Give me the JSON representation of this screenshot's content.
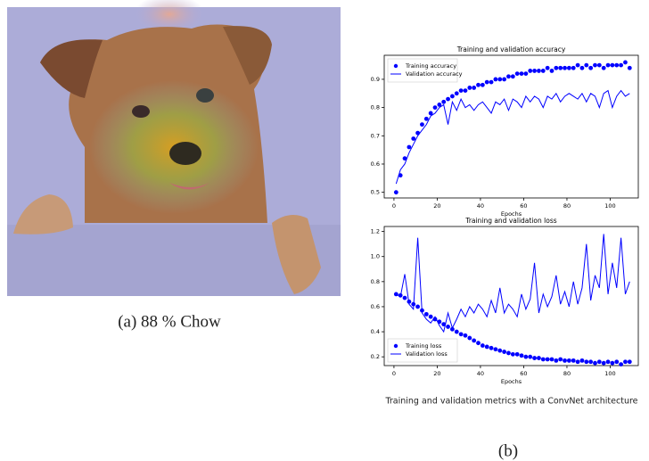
{
  "image_caption": "(a) 88 % Chow",
  "figure_caption": "Training and validation metrics with a ConvNet architecture",
  "panel_label": "(b)",
  "chart_data": [
    {
      "type": "line",
      "title": "Training and validation accuracy",
      "xlabel": "Epochs",
      "x": [
        1,
        3,
        5,
        7,
        9,
        11,
        13,
        15,
        17,
        19,
        21,
        23,
        25,
        27,
        29,
        31,
        33,
        35,
        37,
        39,
        41,
        43,
        45,
        47,
        49,
        51,
        53,
        55,
        57,
        59,
        61,
        63,
        65,
        67,
        69,
        71,
        73,
        75,
        77,
        79,
        81,
        83,
        85,
        87,
        89,
        91,
        93,
        95,
        97,
        99,
        101,
        103,
        105,
        107,
        109
      ],
      "series": [
        {
          "name": "Training accuracy",
          "color": "#0000ff",
          "style": "dots",
          "values": [
            0.5,
            0.56,
            0.62,
            0.66,
            0.69,
            0.71,
            0.74,
            0.76,
            0.78,
            0.8,
            0.81,
            0.82,
            0.83,
            0.84,
            0.85,
            0.86,
            0.86,
            0.87,
            0.87,
            0.88,
            0.88,
            0.89,
            0.89,
            0.9,
            0.9,
            0.9,
            0.91,
            0.91,
            0.92,
            0.92,
            0.92,
            0.93,
            0.93,
            0.93,
            0.93,
            0.94,
            0.93,
            0.94,
            0.94,
            0.94,
            0.94,
            0.94,
            0.95,
            0.94,
            0.95,
            0.94,
            0.95,
            0.95,
            0.94,
            0.95,
            0.95,
            0.95,
            0.95,
            0.96,
            0.94
          ]
        },
        {
          "name": "Validation accuracy",
          "color": "#0000ff",
          "style": "line",
          "values": [
            0.53,
            0.58,
            0.6,
            0.64,
            0.67,
            0.7,
            0.72,
            0.74,
            0.77,
            0.78,
            0.8,
            0.81,
            0.74,
            0.82,
            0.79,
            0.83,
            0.8,
            0.81,
            0.79,
            0.81,
            0.82,
            0.8,
            0.78,
            0.82,
            0.81,
            0.83,
            0.79,
            0.83,
            0.82,
            0.8,
            0.84,
            0.82,
            0.84,
            0.83,
            0.8,
            0.84,
            0.83,
            0.85,
            0.82,
            0.84,
            0.85,
            0.84,
            0.83,
            0.85,
            0.82,
            0.85,
            0.84,
            0.8,
            0.85,
            0.86,
            0.8,
            0.84,
            0.86,
            0.84,
            0.85
          ]
        }
      ],
      "xlim": [
        -4.5,
        113
      ],
      "ylim": [
        0.48,
        0.985
      ],
      "xticks": [
        0,
        20,
        40,
        60,
        80,
        100
      ],
      "yticks": [
        0.5,
        0.6,
        0.7,
        0.8,
        0.9
      ],
      "legend": "upper left"
    },
    {
      "type": "line",
      "title": "Training and validation loss",
      "xlabel": "Epochs",
      "x": [
        1,
        3,
        5,
        7,
        9,
        11,
        13,
        15,
        17,
        19,
        21,
        23,
        25,
        27,
        29,
        31,
        33,
        35,
        37,
        39,
        41,
        43,
        45,
        47,
        49,
        51,
        53,
        55,
        57,
        59,
        61,
        63,
        65,
        67,
        69,
        71,
        73,
        75,
        77,
        79,
        81,
        83,
        85,
        87,
        89,
        91,
        93,
        95,
        97,
        99,
        101,
        103,
        105,
        107,
        109
      ],
      "series": [
        {
          "name": "Training loss",
          "color": "#0000ff",
          "style": "dots",
          "values": [
            0.7,
            0.69,
            0.67,
            0.64,
            0.62,
            0.6,
            0.57,
            0.54,
            0.52,
            0.5,
            0.48,
            0.46,
            0.44,
            0.42,
            0.4,
            0.38,
            0.37,
            0.35,
            0.33,
            0.31,
            0.29,
            0.28,
            0.27,
            0.26,
            0.25,
            0.24,
            0.23,
            0.22,
            0.22,
            0.21,
            0.2,
            0.2,
            0.19,
            0.19,
            0.18,
            0.18,
            0.18,
            0.17,
            0.18,
            0.17,
            0.17,
            0.17,
            0.16,
            0.17,
            0.16,
            0.16,
            0.15,
            0.16,
            0.15,
            0.16,
            0.15,
            0.16,
            0.14,
            0.16,
            0.16
          ]
        },
        {
          "name": "Validation loss",
          "color": "#0000ff",
          "style": "line",
          "values": [
            0.7,
            0.68,
            0.86,
            0.62,
            0.58,
            1.15,
            0.55,
            0.5,
            0.47,
            0.52,
            0.45,
            0.4,
            0.55,
            0.43,
            0.5,
            0.58,
            0.52,
            0.6,
            0.55,
            0.62,
            0.58,
            0.52,
            0.65,
            0.55,
            0.75,
            0.55,
            0.62,
            0.58,
            0.52,
            0.7,
            0.58,
            0.66,
            0.95,
            0.55,
            0.7,
            0.6,
            0.68,
            0.85,
            0.62,
            0.72,
            0.6,
            0.8,
            0.62,
            0.75,
            1.1,
            0.65,
            0.85,
            0.75,
            1.18,
            0.7,
            0.95,
            0.75,
            1.15,
            0.7,
            0.8
          ]
        }
      ],
      "xlim": [
        -4.5,
        113
      ],
      "ylim": [
        0.13,
        1.24
      ],
      "xticks": [
        0,
        20,
        40,
        60,
        80,
        100
      ],
      "yticks": [
        0.2,
        0.4,
        0.6,
        0.8,
        {
          "value": 1,
          "label": "1.0"
        },
        1.2
      ],
      "legend": "lower left"
    }
  ]
}
